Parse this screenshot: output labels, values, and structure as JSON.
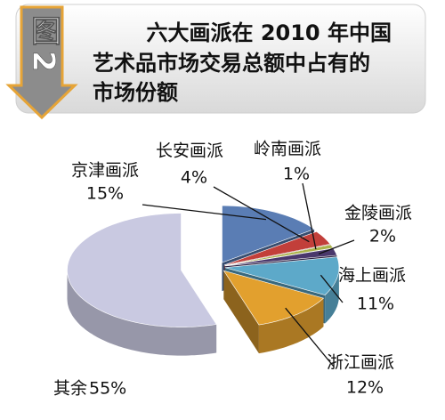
{
  "chart_data": {
    "type": "pie",
    "figure_label": "图2",
    "title": [
      "六大画派在 2010 年中国",
      "艺术品市场交易总额中占有的",
      "市场份额"
    ],
    "categories": [
      "京津画派",
      "长安画派",
      "岭南画派",
      "金陵画派",
      "海上画派",
      "浙江画派",
      "其余"
    ],
    "values": [
      15,
      4,
      1,
      2,
      11,
      12,
      55
    ],
    "value_labels": [
      "15%",
      "4%",
      "1%",
      "2%",
      "11%",
      "12%",
      "55%"
    ],
    "colors": [
      "#5a7db4",
      "#c23f3a",
      "#a9b24a",
      "#4a386c",
      "#5da9c9",
      "#e2a02e",
      "#c9c9e1"
    ]
  }
}
